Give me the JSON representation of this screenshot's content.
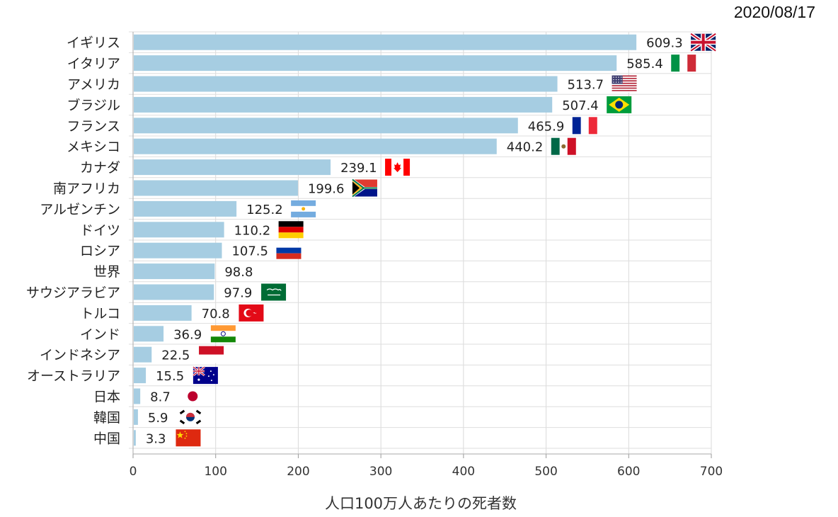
{
  "date": "2020/08/17",
  "chart_data": {
    "type": "bar",
    "orientation": "horizontal",
    "title": "",
    "xlabel": "人口100万人あたりの死者数",
    "ylabel": "",
    "xlim": [
      0,
      700
    ],
    "xticks": [
      0,
      100,
      200,
      300,
      400,
      500,
      600,
      700
    ],
    "grid": true,
    "bar_color": "#a6cde2",
    "categories": [
      "イギリス",
      "イタリア",
      "アメリカ",
      "ブラジル",
      "フランス",
      "メキシコ",
      "カナダ",
      "南アフリカ",
      "アルゼンチン",
      "ドイツ",
      "ロシア",
      "世界",
      "サウジアラビア",
      "トルコ",
      "インド",
      "インドネシア",
      "オーストラリア",
      "日本",
      "韓国",
      "中国"
    ],
    "values": [
      609.3,
      585.4,
      513.7,
      507.4,
      465.9,
      440.2,
      239.1,
      199.6,
      125.2,
      110.2,
      107.5,
      98.8,
      97.9,
      70.8,
      36.9,
      22.5,
      15.5,
      8.7,
      5.9,
      3.3
    ],
    "value_labels": [
      "609.3",
      "585.4",
      "513.7",
      "507.4",
      "465.9",
      "440.2",
      "239.1",
      "199.6",
      "125.2",
      "110.2",
      "107.5",
      "98.8",
      "97.9",
      "70.8",
      "36.9",
      "22.5",
      "15.5",
      "8.7",
      "5.9",
      "3.3"
    ],
    "flags": [
      "uk-flag-icon",
      "italy-flag-icon",
      "usa-flag-icon",
      "brazil-flag-icon",
      "france-flag-icon",
      "mexico-flag-icon",
      "canada-flag-icon",
      "south-africa-flag-icon",
      "argentina-flag-icon",
      "germany-flag-icon",
      "russia-flag-icon",
      "",
      "saudi-arabia-flag-icon",
      "turkey-flag-icon",
      "india-flag-icon",
      "indonesia-flag-icon",
      "australia-flag-icon",
      "japan-flag-icon",
      "korea-flag-icon",
      "china-flag-icon"
    ]
  }
}
